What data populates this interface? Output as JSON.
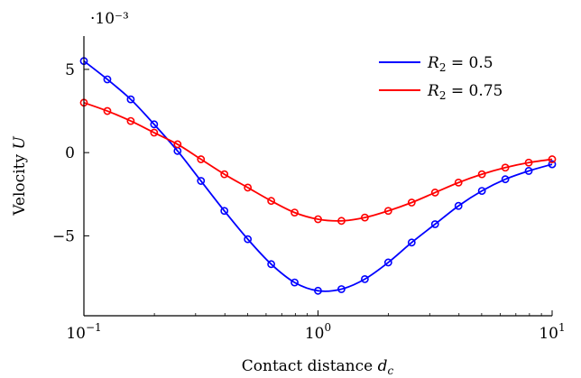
{
  "chart_data": {
    "type": "line",
    "xscale": "log",
    "xlim": [
      0.1,
      10
    ],
    "ylim": [
      -0.0098,
      0.007
    ],
    "y_multiplier": "·10⁻³",
    "xlabel": {
      "text": "Contact distance ",
      "var": "d",
      "sub": "c"
    },
    "ylabel": {
      "text": "Velocity ",
      "var": "U"
    },
    "x_ticks": [
      {
        "value": 0.1,
        "base": "10",
        "exp": "−1"
      },
      {
        "value": 1,
        "base": "10",
        "exp": "0"
      },
      {
        "value": 10,
        "base": "10",
        "exp": "1"
      }
    ],
    "y_ticks": [
      {
        "value": 0.005,
        "label": "5"
      },
      {
        "value": 0,
        "label": "0"
      },
      {
        "value": -0.005,
        "label": "−5"
      }
    ],
    "legend_position": "top-right",
    "grid": false,
    "series": [
      {
        "name": "R₂ = 0.5",
        "legend": {
          "var": "R",
          "sub": "2",
          "rest": " = 0.5"
        },
        "color": "#0000ff",
        "x": [
          0.1,
          0.1259,
          0.1585,
          0.1995,
          0.2512,
          0.3162,
          0.3981,
          0.5012,
          0.631,
          0.7943,
          1.0,
          1.259,
          1.585,
          1.995,
          2.512,
          3.162,
          3.981,
          5.012,
          6.31,
          7.943,
          10.0
        ],
        "y": [
          0.0055,
          0.0044,
          0.0032,
          0.0017,
          0.0001,
          -0.0017,
          -0.0035,
          -0.0052,
          -0.0067,
          -0.0078,
          -0.0083,
          -0.0082,
          -0.0076,
          -0.0066,
          -0.0054,
          -0.0043,
          -0.0032,
          -0.0023,
          -0.0016,
          -0.0011,
          -0.0007
        ]
      },
      {
        "name": "R₂ = 0.75",
        "legend": {
          "var": "R",
          "sub": "2",
          "rest": " = 0.75"
        },
        "color": "#ff0000",
        "x": [
          0.1,
          0.1259,
          0.1585,
          0.1995,
          0.2512,
          0.3162,
          0.3981,
          0.5012,
          0.631,
          0.7943,
          1.0,
          1.259,
          1.585,
          1.995,
          2.512,
          3.162,
          3.981,
          5.012,
          6.31,
          7.943,
          10.0
        ],
        "y": [
          0.003,
          0.0025,
          0.0019,
          0.0012,
          0.0005,
          -0.0004,
          -0.0013,
          -0.0021,
          -0.0029,
          -0.0036,
          -0.004,
          -0.0041,
          -0.0039,
          -0.0035,
          -0.003,
          -0.0024,
          -0.0018,
          -0.0013,
          -0.0009,
          -0.0006,
          -0.0004
        ]
      }
    ]
  }
}
